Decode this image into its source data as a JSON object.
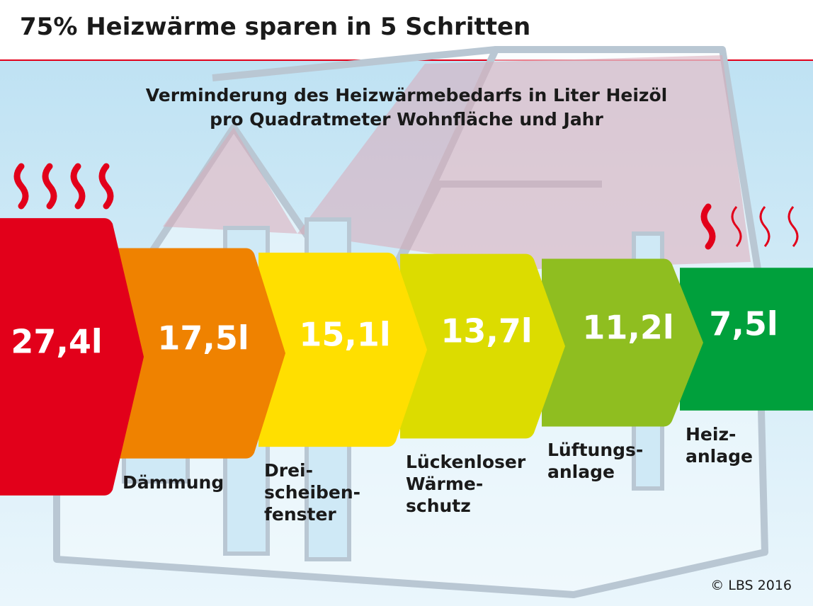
{
  "chart_data": {
    "type": "steps",
    "title": "75% Heizwärme sparen in 5 Schritten",
    "subtitle": "Verminderung des Heizwärmebedarfs in Liter Heizöl\npro Quadratmeter Wohnfläche und Jahr",
    "categories": [
      null,
      "Dämmung",
      "Drei-\nscheiben-\nfenster",
      "Lückenloser\nWärme-\nschutz",
      "Lüftungs-\nanlage",
      "Heiz-\nanlage"
    ],
    "values": [
      27.4,
      17.5,
      15.1,
      13.7,
      11.2,
      7.5
    ],
    "value_labels": [
      "27,4l",
      "17,5l",
      "15,1l",
      "13,7l",
      "11,2l",
      "7,5l"
    ],
    "colors": [
      "#e2001a",
      "#ef8200",
      "#ffdf00",
      "#dcdc00",
      "#8fbe20",
      "#00a03c"
    ],
    "source": "© LBS 2016"
  }
}
